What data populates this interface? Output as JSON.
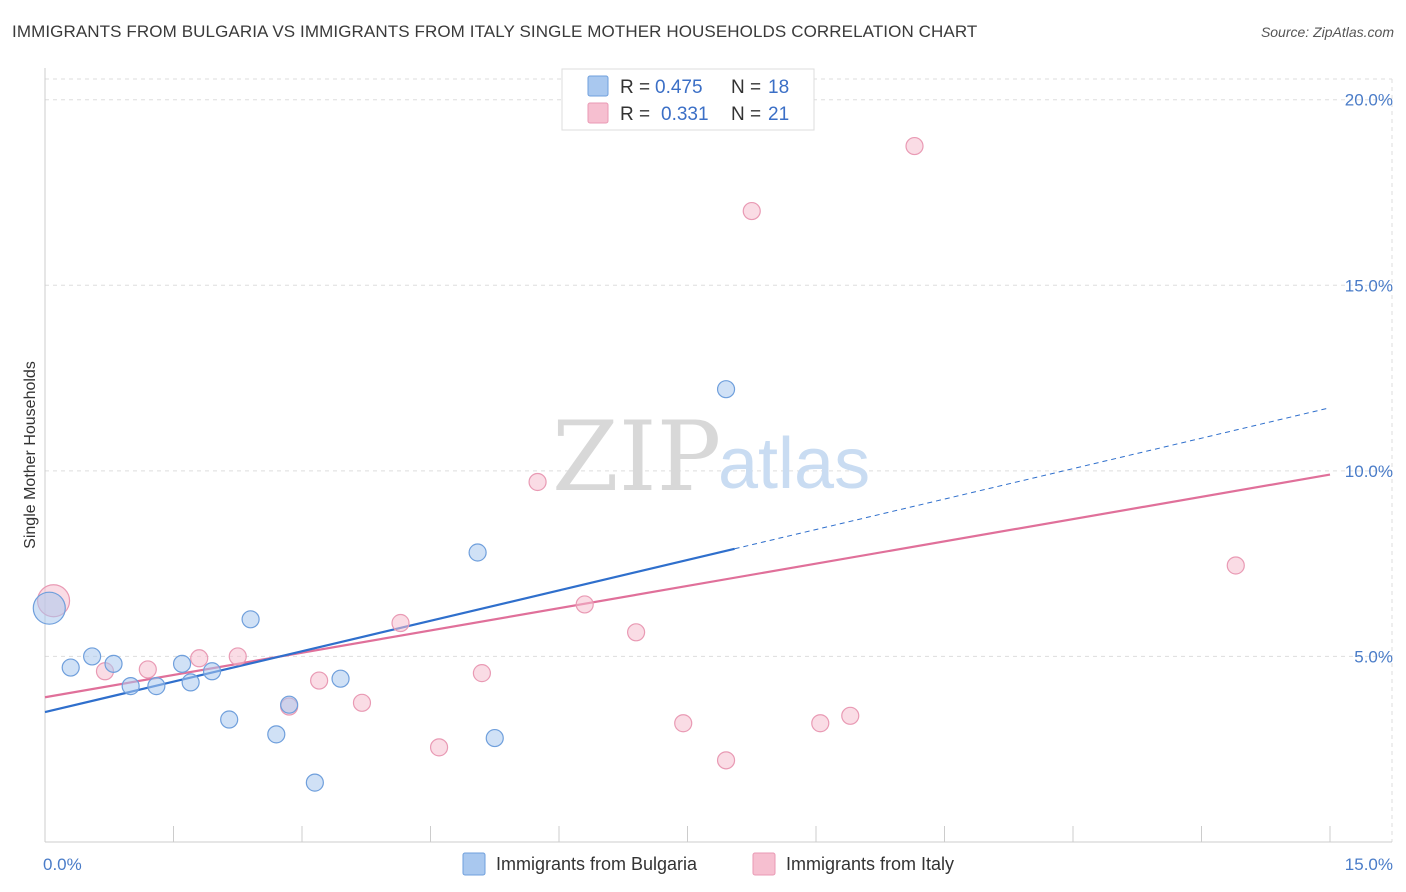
{
  "title": "IMMIGRANTS FROM BULGARIA VS IMMIGRANTS FROM ITALY SINGLE MOTHER HOUSEHOLDS CORRELATION CHART",
  "source": "Source: ZipAtlas.com",
  "watermark": {
    "zip": "ZIP",
    "atlas": "atlas"
  },
  "colors": {
    "bulgaria_fill": "#a9c8ef",
    "bulgaria_stroke": "#6f9fdc",
    "bulgaria_line": "#2f6fcc",
    "italy_fill": "#f6bfd0",
    "italy_stroke": "#e99ab4",
    "italy_line": "#e0709a",
    "grid": "#dddddd",
    "tick_label": "#4a7cc8"
  },
  "legend": {
    "rows": [
      {
        "r_label": "R =",
        "r_value": "0.475",
        "n_label": "N =",
        "n_value": "18"
      },
      {
        "r_label": "R =",
        "r_value": "0.331",
        "n_label": "N =",
        "n_value": "21"
      }
    ]
  },
  "chart_data": {
    "type": "scatter",
    "title": "IMMIGRANTS FROM BULGARIA VS IMMIGRANTS FROM ITALY SINGLE MOTHER HOUSEHOLDS CORRELATION CHART",
    "xlabel": "",
    "ylabel": "Single Mother Households",
    "xlim": [
      0,
      15
    ],
    "ylim": [
      0,
      20.8
    ],
    "x_tick_labels": [
      "0.0%",
      "15.0%"
    ],
    "y_ticks": [
      5,
      10,
      15,
      20
    ],
    "y_tick_labels": [
      "5.0%",
      "10.0%",
      "15.0%",
      "20.0%"
    ],
    "grid": true,
    "legend_position": "top-center",
    "series": [
      {
        "name": "Immigrants from Bulgaria",
        "r": 0.475,
        "n": 18,
        "points": [
          {
            "x": 0.05,
            "y": 6.3,
            "size": "large"
          },
          {
            "x": 0.3,
            "y": 4.7
          },
          {
            "x": 0.55,
            "y": 5.0
          },
          {
            "x": 0.8,
            "y": 4.8
          },
          {
            "x": 1.0,
            "y": 4.2
          },
          {
            "x": 1.3,
            "y": 4.2
          },
          {
            "x": 1.6,
            "y": 4.8
          },
          {
            "x": 1.7,
            "y": 4.3
          },
          {
            "x": 1.95,
            "y": 4.6
          },
          {
            "x": 2.15,
            "y": 3.3
          },
          {
            "x": 2.4,
            "y": 6.0
          },
          {
            "x": 2.7,
            "y": 2.9
          },
          {
            "x": 2.85,
            "y": 3.7
          },
          {
            "x": 3.15,
            "y": 1.6
          },
          {
            "x": 3.45,
            "y": 4.4
          },
          {
            "x": 5.05,
            "y": 7.8
          },
          {
            "x": 5.25,
            "y": 2.8
          },
          {
            "x": 7.95,
            "y": 12.2
          }
        ],
        "trend": {
          "x0": 0,
          "y0": 3.5,
          "x1": 8.05,
          "y1": 7.9,
          "dash_x1": 15.0,
          "dash_y1": 11.7
        }
      },
      {
        "name": "Immigrants from Italy",
        "r": 0.331,
        "n": 21,
        "points": [
          {
            "x": 0.1,
            "y": 6.5,
            "size": "large"
          },
          {
            "x": 0.7,
            "y": 4.6
          },
          {
            "x": 1.2,
            "y": 4.65
          },
          {
            "x": 1.8,
            "y": 4.95
          },
          {
            "x": 2.25,
            "y": 5.0
          },
          {
            "x": 2.85,
            "y": 3.65
          },
          {
            "x": 3.2,
            "y": 4.35
          },
          {
            "x": 3.7,
            "y": 3.75
          },
          {
            "x": 4.15,
            "y": 5.9
          },
          {
            "x": 4.6,
            "y": 2.55
          },
          {
            "x": 5.1,
            "y": 4.55
          },
          {
            "x": 5.75,
            "y": 9.7
          },
          {
            "x": 6.3,
            "y": 6.4
          },
          {
            "x": 6.9,
            "y": 5.65
          },
          {
            "x": 7.45,
            "y": 3.2
          },
          {
            "x": 7.95,
            "y": 2.2
          },
          {
            "x": 8.25,
            "y": 17.0
          },
          {
            "x": 9.05,
            "y": 3.2
          },
          {
            "x": 9.4,
            "y": 3.4
          },
          {
            "x": 10.15,
            "y": 18.75
          },
          {
            "x": 13.9,
            "y": 7.45
          }
        ],
        "trend": {
          "x0": 0,
          "y0": 3.9,
          "x1": 15.0,
          "y1": 9.9
        }
      }
    ]
  }
}
